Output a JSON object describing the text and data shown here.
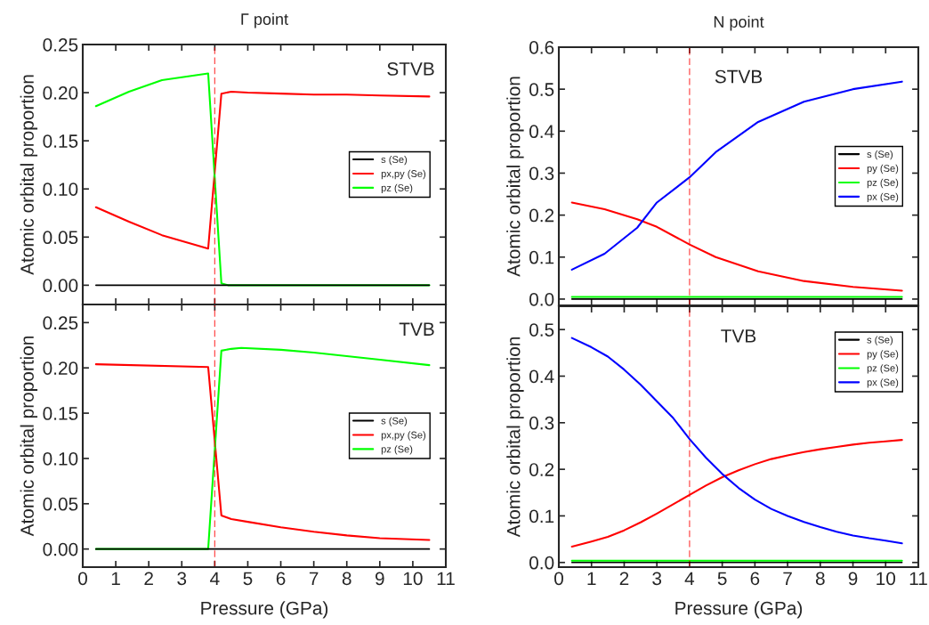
{
  "chart_data": [
    {
      "type": "line",
      "title": "Γ point",
      "ylabel": "Atomic orbital proportion",
      "annotations": [
        "STVB"
      ],
      "tick_labels": "y",
      "xlim": [
        0,
        11
      ],
      "xticks": [
        {
          "value": 0,
          "label": null
        },
        {
          "value": 1,
          "label": null
        },
        {
          "value": 2,
          "label": null
        },
        {
          "value": 3,
          "label": null
        },
        {
          "value": 4,
          "label": null
        },
        {
          "value": 5,
          "label": null
        },
        {
          "value": 6,
          "label": null
        },
        {
          "value": 7,
          "label": null
        },
        {
          "value": 8,
          "label": null
        },
        {
          "value": 9,
          "label": null
        },
        {
          "value": 10,
          "label": null
        },
        {
          "value": 11,
          "label": null
        }
      ],
      "ylim": [
        -0.02,
        0.25
      ],
      "yticks": [
        {
          "value": 0,
          "label": "0.00"
        },
        {
          "value": 0.05,
          "label": "0.05"
        },
        {
          "value": 0.1,
          "label": "0.10"
        },
        {
          "value": 0.15,
          "label": "0.15"
        },
        {
          "value": 0.2,
          "label": "0.20"
        },
        {
          "value": 0.25,
          "label": "0.25"
        }
      ],
      "legend": "right",
      "grid": false,
      "line_style": "solid",
      "ref_lines": [
        {
          "axis": "x",
          "value": 4,
          "color": "#ff0000",
          "line_style": "dashed"
        }
      ],
      "series": [
        {
          "name": "s (Se)",
          "color": "#000000",
          "x": [
            0.4,
            10.5
          ],
          "values": [
            0,
            0
          ]
        },
        {
          "name": "px,py (Se)",
          "color": "#ff0000",
          "x": [
            0.4,
            1.4,
            2.4,
            3.8,
            4.2,
            4.5,
            5,
            6,
            7,
            8,
            9,
            10.5
          ],
          "values": [
            0.081,
            0.066,
            0.052,
            0.038,
            0.199,
            0.201,
            0.2,
            0.199,
            0.198,
            0.198,
            0.197,
            0.196
          ]
        },
        {
          "name": "pz (Se)",
          "color": "#00ff00",
          "x": [
            0.4,
            1.4,
            2.4,
            3.8,
            4.2,
            4.4,
            10.5
          ],
          "values": [
            0.186,
            0.201,
            0.213,
            0.22,
            0.002,
            0,
            0
          ]
        }
      ]
    },
    {
      "type": "line",
      "title": "N point",
      "ylabel": "Atomic orbital proportion",
      "annotations": [
        "STVB"
      ],
      "tick_labels": "y",
      "xlim": [
        0,
        11
      ],
      "xticks": [
        {
          "value": 0,
          "label": null
        },
        {
          "value": 1,
          "label": null
        },
        {
          "value": 2,
          "label": null
        },
        {
          "value": 3,
          "label": null
        },
        {
          "value": 4,
          "label": null
        },
        {
          "value": 5,
          "label": null
        },
        {
          "value": 6,
          "label": null
        },
        {
          "value": 7,
          "label": null
        },
        {
          "value": 8,
          "label": null
        },
        {
          "value": 9,
          "label": null
        },
        {
          "value": 10,
          "label": null
        },
        {
          "value": 11,
          "label": null
        }
      ],
      "ylim": [
        -0.015,
        0.6
      ],
      "yticks": [
        {
          "value": 0,
          "label": "0.0"
        },
        {
          "value": 0.1,
          "label": "0.1"
        },
        {
          "value": 0.2,
          "label": "0.2"
        },
        {
          "value": 0.3,
          "label": "0.3"
        },
        {
          "value": 0.4,
          "label": "0.4"
        },
        {
          "value": 0.5,
          "label": "0.5"
        },
        {
          "value": 0.6,
          "label": "0.6"
        }
      ],
      "legend": "right",
      "grid": false,
      "line_style": "solid",
      "ref_lines": [
        {
          "axis": "x",
          "value": 4,
          "color": "#ff0000",
          "line_style": "dashed"
        }
      ],
      "series": [
        {
          "name": "s (Se)",
          "color": "#000000",
          "x": [
            0.4,
            10.5
          ],
          "values": [
            0,
            0
          ]
        },
        {
          "name": "py (Se)",
          "color": "#ff0000",
          "x": [
            0.4,
            1.4,
            2.4,
            3,
            4,
            4.8,
            6.1,
            7.5,
            9,
            10.5
          ],
          "values": [
            0.23,
            0.214,
            0.19,
            0.172,
            0.13,
            0.1,
            0.066,
            0.043,
            0.029,
            0.02
          ]
        },
        {
          "name": "pz (Se)",
          "color": "#00ff00",
          "x": [
            0.4,
            10.5
          ],
          "values": [
            0.005,
            0.005
          ]
        },
        {
          "name": "px (Se)",
          "color": "#0000ff",
          "x": [
            0.4,
            1.4,
            2.4,
            3,
            4,
            4.8,
            6.1,
            7.5,
            9,
            10.5
          ],
          "values": [
            0.07,
            0.108,
            0.17,
            0.23,
            0.29,
            0.35,
            0.422,
            0.47,
            0.5,
            0.518
          ]
        }
      ]
    },
    {
      "type": "line",
      "xlabel": "Pressure (GPa)",
      "ylabel": "Atomic orbital proportion",
      "annotations": [
        "TVB"
      ],
      "xlim": [
        0,
        11
      ],
      "xticks": [
        0,
        1,
        2,
        3,
        4,
        5,
        6,
        7,
        8,
        9,
        10,
        11
      ],
      "ylim": [
        -0.02,
        0.27
      ],
      "yticks": [
        {
          "value": 0,
          "label": "0.00"
        },
        {
          "value": 0.05,
          "label": "0.05"
        },
        {
          "value": 0.1,
          "label": "0.10"
        },
        {
          "value": 0.15,
          "label": "0.15"
        },
        {
          "value": 0.2,
          "label": "0.20"
        },
        {
          "value": 0.25,
          "label": "0.25"
        }
      ],
      "legend": "right",
      "grid": false,
      "line_style": "solid",
      "ref_lines": [
        {
          "axis": "x",
          "value": 4,
          "color": "#ff0000",
          "line_style": "dashed"
        }
      ],
      "series": [
        {
          "name": "s (Se)",
          "color": "#000000",
          "x": [
            0.4,
            10.5
          ],
          "values": [
            0,
            0
          ]
        },
        {
          "name": "px,py (Se)",
          "color": "#ff0000",
          "x": [
            0.4,
            3.8,
            4.2,
            4.5,
            5,
            6,
            7,
            8,
            9,
            10.5
          ],
          "values": [
            0.204,
            0.201,
            0.037,
            0.033,
            0.03,
            0.024,
            0.019,
            0.015,
            0.012,
            0.01
          ]
        },
        {
          "name": "pz (Se)",
          "color": "#00ff00",
          "x": [
            0.4,
            3.8,
            4.2,
            4.5,
            4.8,
            6,
            7,
            8,
            9,
            10.5
          ],
          "values": [
            0,
            0,
            0.219,
            0.221,
            0.222,
            0.22,
            0.217,
            0.213,
            0.209,
            0.203
          ]
        }
      ]
    },
    {
      "type": "line",
      "xlabel": "Pressure (GPa)",
      "ylabel": "Atomic orbital proportion",
      "annotations": [
        "TVB"
      ],
      "xlim": [
        0,
        11
      ],
      "xticks": [
        0,
        1,
        2,
        3,
        4,
        5,
        6,
        7,
        8,
        9,
        10,
        11
      ],
      "ylim": [
        -0.01,
        0.55
      ],
      "yticks": [
        {
          "value": 0,
          "label": "0.0"
        },
        {
          "value": 0.1,
          "label": "0.1"
        },
        {
          "value": 0.2,
          "label": "0.2"
        },
        {
          "value": 0.3,
          "label": "0.3"
        },
        {
          "value": 0.4,
          "label": "0.4"
        },
        {
          "value": 0.5,
          "label": "0.5"
        }
      ],
      "legend": "top right",
      "grid": false,
      "line_style": "solid",
      "ref_lines": [
        {
          "axis": "x",
          "value": 4,
          "color": "#ff0000",
          "line_style": "dashed"
        }
      ],
      "series": [
        {
          "name": "s (Se)",
          "color": "#000000",
          "x": [
            0.4,
            10.5
          ],
          "values": [
            0,
            0
          ]
        },
        {
          "name": "py (Se)",
          "color": "#ff0000",
          "x": [
            0.4,
            1,
            1.5,
            2,
            2.5,
            3,
            3.5,
            4,
            4.5,
            5,
            5.5,
            6,
            6.5,
            7,
            7.5,
            8,
            8.5,
            9,
            9.5,
            10,
            10.5
          ],
          "values": [
            0.034,
            0.045,
            0.055,
            0.069,
            0.086,
            0.105,
            0.125,
            0.145,
            0.165,
            0.183,
            0.198,
            0.211,
            0.222,
            0.23,
            0.237,
            0.243,
            0.248,
            0.253,
            0.257,
            0.26,
            0.263
          ]
        },
        {
          "name": "pz (Se)",
          "color": "#00ff00",
          "x": [
            0.4,
            10.5
          ],
          "values": [
            0.004,
            0.004
          ]
        },
        {
          "name": "px (Se)",
          "color": "#0000ff",
          "x": [
            0.4,
            1,
            1.5,
            2,
            2.5,
            3,
            3.5,
            4,
            4.5,
            5,
            5.5,
            6,
            6.5,
            7,
            7.5,
            8,
            8.5,
            9,
            9.5,
            10,
            10.5
          ],
          "values": [
            0.482,
            0.462,
            0.442,
            0.414,
            0.382,
            0.346,
            0.31,
            0.265,
            0.225,
            0.19,
            0.16,
            0.135,
            0.115,
            0.1,
            0.087,
            0.076,
            0.066,
            0.058,
            0.052,
            0.047,
            0.041
          ]
        }
      ]
    }
  ]
}
